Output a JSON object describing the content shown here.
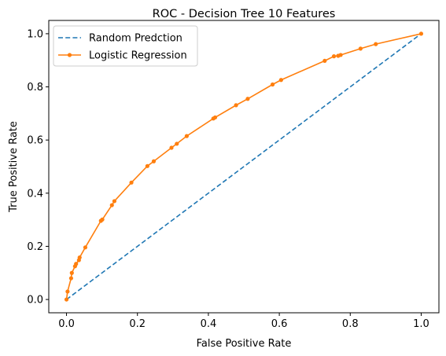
{
  "chart_data": {
    "type": "line",
    "title": "ROC - Decision Tree 10 Features",
    "xlabel": "False Positive Rate",
    "ylabel": "True Positive Rate",
    "xlim": [
      -0.05,
      1.05
    ],
    "ylim": [
      -0.05,
      1.05
    ],
    "xticks": [
      0.0,
      0.2,
      0.4,
      0.6,
      0.8,
      1.0
    ],
    "yticks": [
      0.0,
      0.2,
      0.4,
      0.6,
      0.8,
      1.0
    ],
    "xtick_labels": [
      "0.0",
      "0.2",
      "0.4",
      "0.6",
      "0.8",
      "1.0"
    ],
    "ytick_labels": [
      "0.0",
      "0.2",
      "0.4",
      "0.6",
      "0.8",
      "1.0"
    ],
    "grid": false,
    "legend_position": "top-left",
    "series": [
      {
        "name": "Random Predction",
        "style": "dashed",
        "color": "#1f77b4",
        "x": [
          0.0,
          1.0
        ],
        "y": [
          0.0,
          1.0
        ]
      },
      {
        "name": "Logistic Regression",
        "style": "solid-with-markers",
        "color": "#ff7f0e",
        "x": [
          0.0,
          0.003,
          0.013,
          0.015,
          0.024,
          0.027,
          0.035,
          0.037,
          0.053,
          0.097,
          0.101,
          0.128,
          0.135,
          0.183,
          0.228,
          0.246,
          0.296,
          0.311,
          0.339,
          0.414,
          0.419,
          0.478,
          0.511,
          0.581,
          0.605,
          0.728,
          0.754,
          0.766,
          0.773,
          0.829,
          0.872,
          1.0
        ],
        "y": [
          0.0,
          0.03,
          0.08,
          0.1,
          0.125,
          0.134,
          0.148,
          0.158,
          0.196,
          0.296,
          0.301,
          0.355,
          0.37,
          0.44,
          0.502,
          0.52,
          0.571,
          0.586,
          0.615,
          0.681,
          0.685,
          0.731,
          0.755,
          0.809,
          0.826,
          0.898,
          0.915,
          0.917,
          0.92,
          0.944,
          0.961,
          1.0
        ]
      }
    ]
  }
}
